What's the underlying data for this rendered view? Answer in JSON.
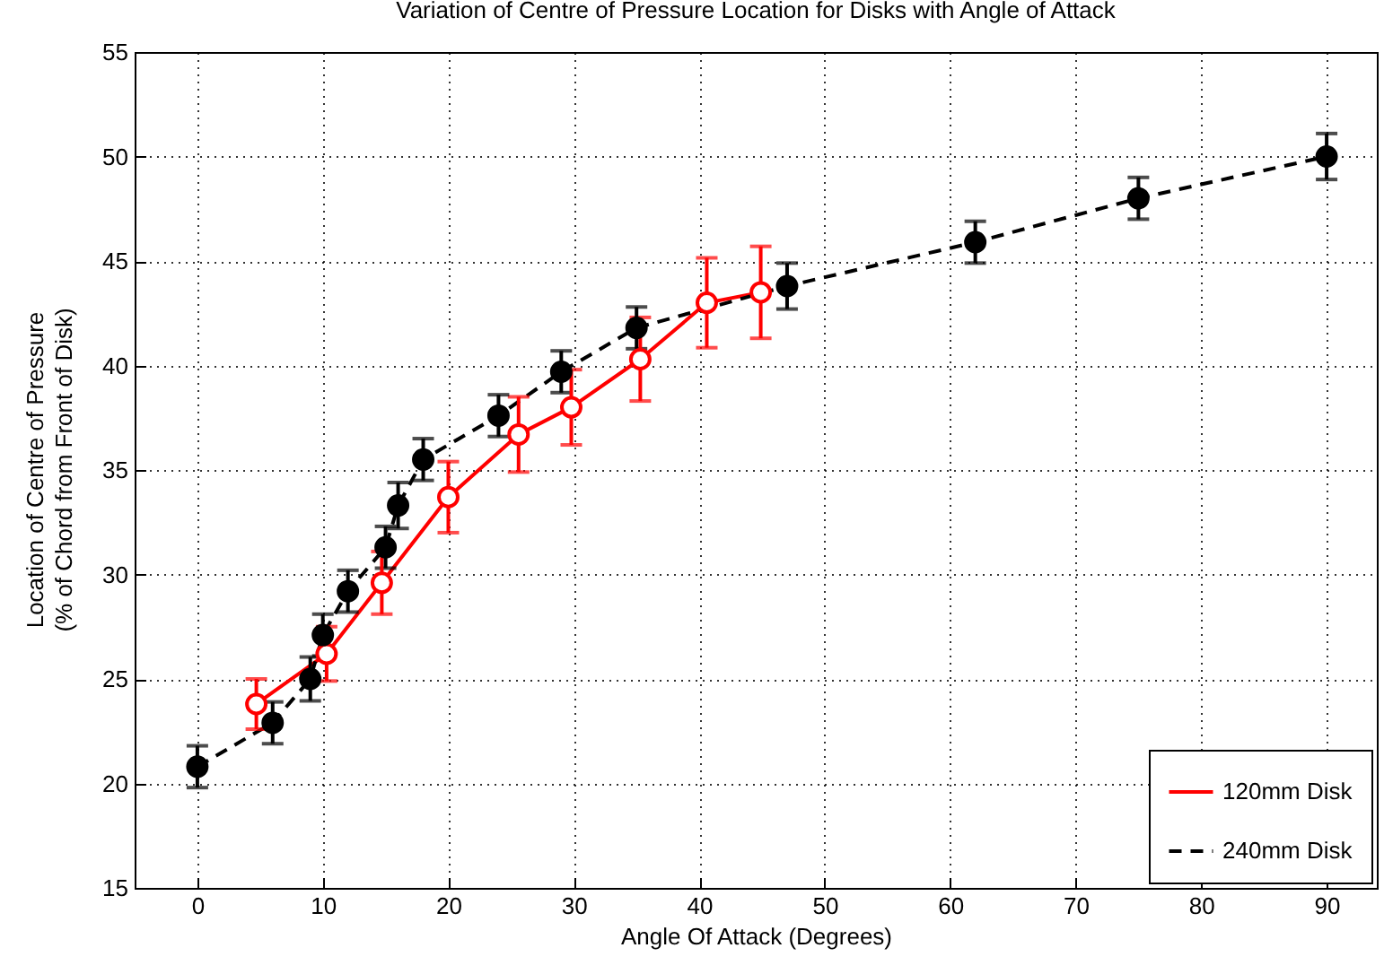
{
  "chart_data": {
    "type": "line",
    "title": "Variation of Centre of Pressure Location for Disks with Angle of Attack",
    "xlabel": "Angle Of Attack (Degrees)",
    "ylabel": "Location of Centre of Pressure\n(% of Chord from Front of Disk)",
    "xlim": [
      -5,
      94
    ],
    "xticks": [
      0,
      10,
      20,
      30,
      40,
      50,
      60,
      70,
      80,
      90
    ],
    "ylim": [
      15,
      55
    ],
    "yticks": [
      15,
      20,
      25,
      30,
      35,
      40,
      45,
      50,
      55
    ],
    "grid": true,
    "legend": "bottom right",
    "marker": "circle",
    "series": [
      {
        "name": "120mm Disk",
        "color": "#ff0000",
        "line_style": "solid",
        "x": [
          4.7,
          10.3,
          14.7,
          20,
          25.6,
          29.8,
          35.3,
          40.6,
          44.9
        ],
        "values": [
          23.8,
          26.2,
          29.6,
          33.7,
          36.7,
          38.0,
          40.3,
          43.0,
          43.5
        ],
        "errors": [
          1.2,
          1.3,
          1.5,
          1.7,
          1.8,
          1.8,
          2.0,
          2.15,
          2.2
        ]
      },
      {
        "name": "240mm Disk",
        "color": "#000000",
        "line_style": "dashed",
        "x": [
          0,
          6,
          9,
          10,
          12,
          15,
          16,
          18,
          24,
          29,
          35,
          47,
          62,
          75,
          90
        ],
        "values": [
          20.8,
          22.9,
          25.0,
          27.1,
          29.2,
          31.3,
          33.3,
          35.5,
          37.6,
          39.7,
          41.8,
          43.8,
          45.9,
          48.0,
          50.0
        ],
        "errors": [
          1.0,
          1.0,
          1.05,
          1.0,
          1.0,
          1.0,
          1.1,
          1.0,
          1.0,
          1.0,
          1.0,
          1.1,
          1.0,
          1.0,
          1.1
        ]
      }
    ]
  }
}
